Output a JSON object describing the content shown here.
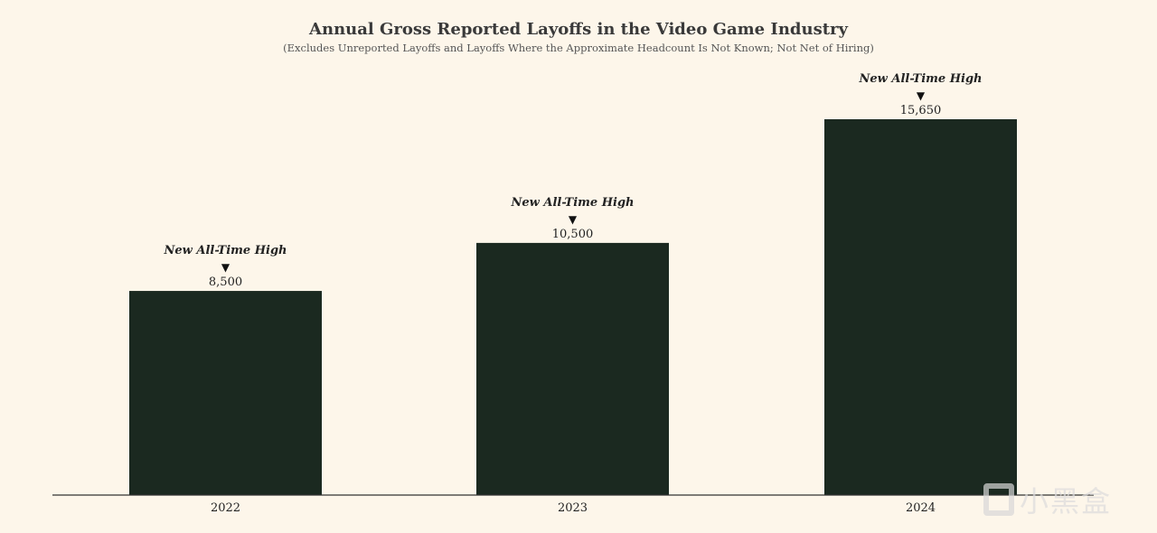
{
  "chart_data": {
    "type": "bar",
    "title": "Annual Gross Reported Layoffs in the Video Game Industry",
    "subtitle": "(Excludes Unreported Layoffs and Layoffs Where the Approximate Headcount Is Not Known; Not Net of Hiring)",
    "categories": [
      "2022",
      "2023",
      "2024"
    ],
    "values": [
      8500,
      10500,
      15650
    ],
    "value_labels": [
      "8,500",
      "10,500",
      "15,650"
    ],
    "annotations": [
      "New All-Time High",
      "New All-Time High",
      "New All-Time High"
    ],
    "annotation_marker": "▼",
    "xlabel": "",
    "ylabel": "",
    "ylim": [
      0,
      15650
    ],
    "grid": false,
    "bar_color": "#1b2920"
  },
  "watermark": "小黑盒"
}
